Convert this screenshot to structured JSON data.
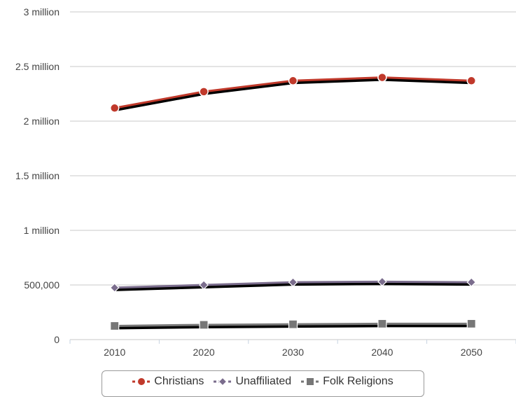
{
  "chart_data": {
    "type": "line",
    "x": [
      "2010",
      "2020",
      "2030",
      "2040",
      "2050"
    ],
    "y_ticks": [
      {
        "value": 0,
        "label": "0"
      },
      {
        "value": 500000,
        "label": "500,000"
      },
      {
        "value": 1000000,
        "label": "1 million"
      },
      {
        "value": 1500000,
        "label": "1.5 million"
      },
      {
        "value": 2000000,
        "label": "2 million"
      },
      {
        "value": 2500000,
        "label": "2.5 million"
      },
      {
        "value": 3000000,
        "label": "3 million"
      }
    ],
    "ylim": [
      0,
      3000000
    ],
    "grid": "horizontal",
    "legend_position": "bottom-center",
    "series": [
      {
        "name": "Christians",
        "color": "#c0392b",
        "marker": "circle",
        "values": [
          2120000,
          2270000,
          2370000,
          2400000,
          2370000
        ]
      },
      {
        "name": "Unaffiliated",
        "color": "#7b6d8d",
        "marker": "diamond",
        "values": [
          475000,
          500000,
          525000,
          530000,
          525000
        ]
      },
      {
        "name": "Folk Religions",
        "color": "#777777",
        "marker": "square",
        "values": [
          125000,
          135000,
          140000,
          145000,
          145000
        ]
      }
    ]
  }
}
